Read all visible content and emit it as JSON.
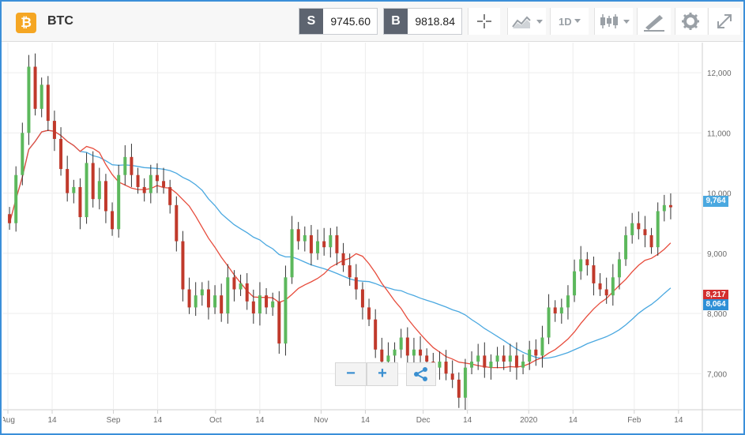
{
  "header": {
    "coin_glyph": "₿",
    "symbol": "BTC",
    "sell_label": "S",
    "sell_price": "9745.60",
    "buy_label": "B",
    "buy_price": "9818.84",
    "timeframe": "1D"
  },
  "toolbar_icons": [
    "crosshair-icon",
    "chart-type-icon",
    "timeframe-dropdown",
    "candles-icon",
    "drawing-icon",
    "gear-icon",
    "expand-icon"
  ],
  "chart_data": {
    "type": "line",
    "series": [
      {
        "name": "Price",
        "kind": "candlestick",
        "color_up": "#5cb85c",
        "color_down": "#c0392b"
      },
      {
        "name": "MA short",
        "color": "#e74c3c"
      },
      {
        "name": "MA long",
        "color": "#4aa8e0"
      }
    ],
    "y_ticks": [
      "12,000",
      "11,000",
      "10,000",
      "9,000",
      "8,000",
      "7,000"
    ],
    "x_ticks": [
      "Aug",
      "14",
      "Sep",
      "14",
      "Oct",
      "14",
      "Nov",
      "14",
      "Dec",
      "14",
      "2020",
      "14",
      "Feb",
      "14"
    ],
    "ylim": [
      6400,
      12500
    ],
    "x_dates": [
      "2019-08-01",
      "2019-08-14",
      "2019-09-01",
      "2019-09-14",
      "2019-10-01",
      "2019-10-14",
      "2019-11-01",
      "2019-11-14",
      "2019-12-01",
      "2019-12-14",
      "2020-01-01",
      "2020-01-14",
      "2020-02-01",
      "2020-02-14"
    ],
    "price_close_approx": [
      9500,
      10300,
      11000,
      12100,
      11400,
      11800,
      11200,
      10900,
      10400,
      10000,
      10100,
      9600,
      10500,
      9900,
      10200,
      9700,
      9400,
      10300,
      10600,
      10300,
      10100,
      10000,
      10300,
      10200,
      10100,
      9800,
      9200,
      8400,
      8100,
      8300,
      8400,
      8100,
      8300,
      8000,
      8600,
      8400,
      8500,
      8200,
      8000,
      8300,
      8100,
      8200,
      7500,
      8600,
      9400,
      9200,
      9300,
      9000,
      9200,
      9100,
      9300,
      9000,
      8800,
      8600,
      8400,
      8100,
      7900,
      7400,
      7200,
      7300,
      7400,
      7600,
      7300,
      7400,
      7300,
      7200,
      7100,
      7200,
      7000,
      6900,
      6600,
      7100,
      7200,
      7300,
      7100,
      7200,
      7300,
      7200,
      7300,
      7100,
      7200,
      7400,
      7300,
      7600,
      8100,
      8000,
      8100,
      8300,
      8700,
      8900,
      8800,
      8500,
      8400,
      8300,
      8600,
      8900,
      9300,
      9500,
      9400,
      9300,
      9100,
      9700,
      9800,
      9764
    ],
    "ma_short_label": "8,217",
    "ma_long_label": "8,064",
    "last_price_label": "9,764"
  },
  "zoom": {
    "minus": "−",
    "plus": "+"
  }
}
